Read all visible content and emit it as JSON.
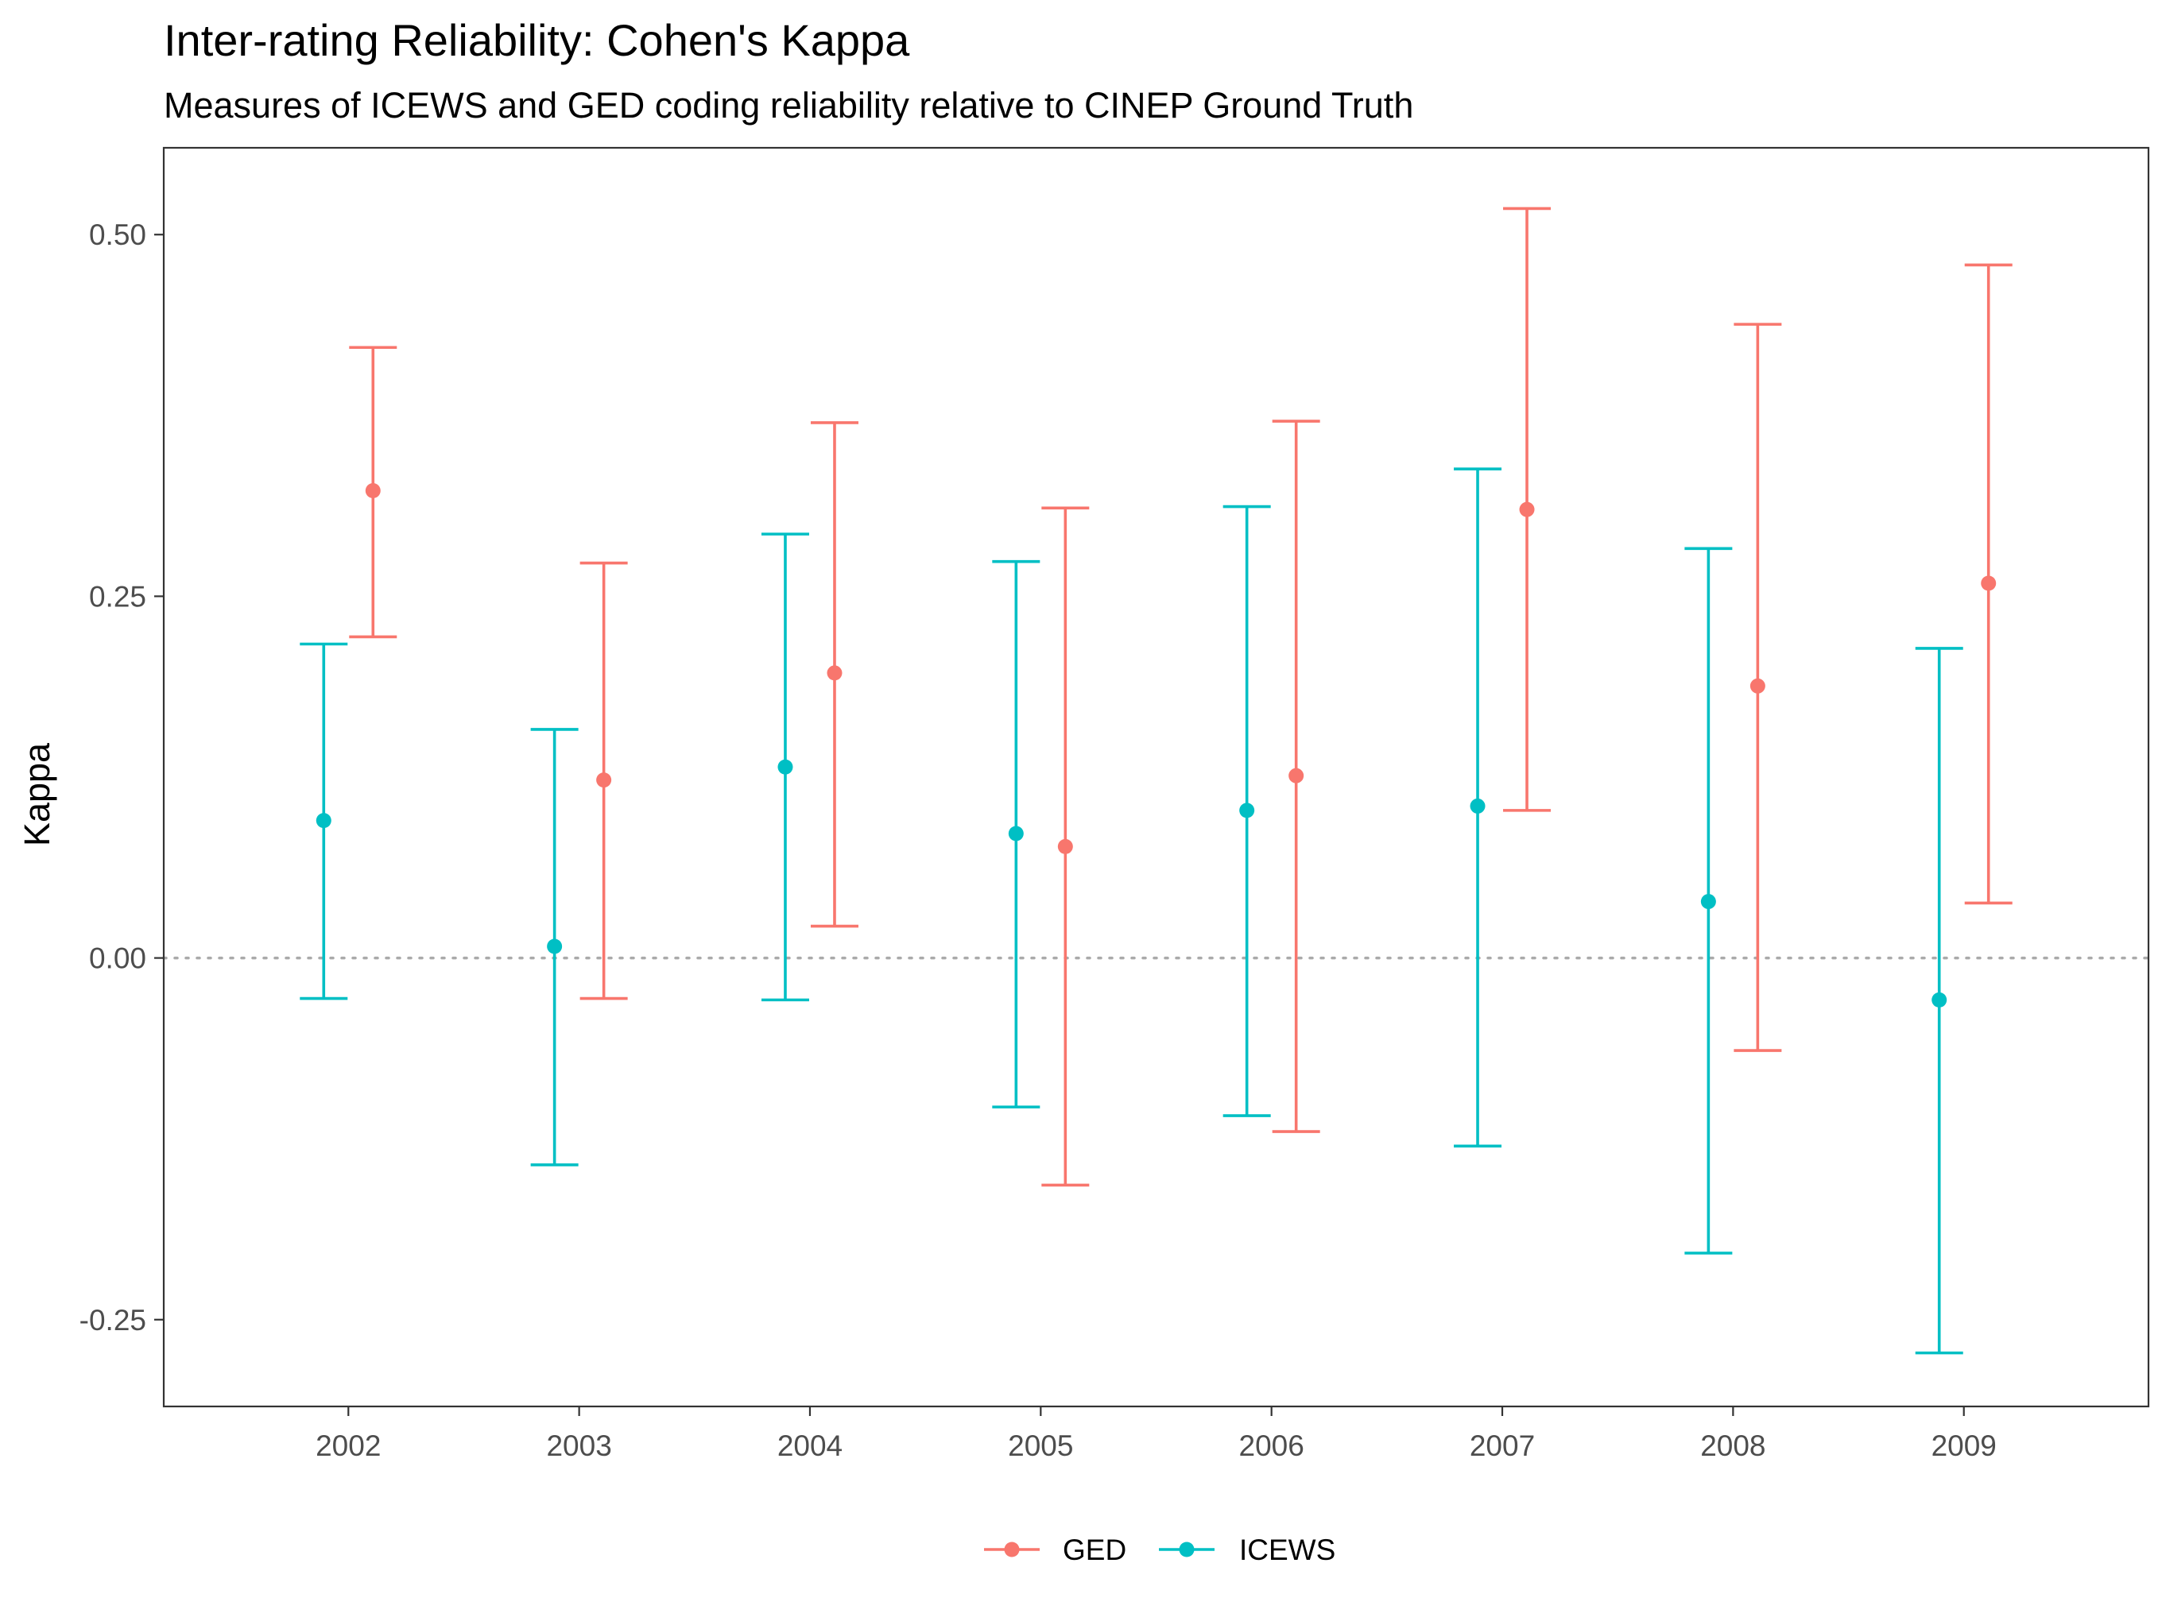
{
  "chart_data": {
    "type": "errorbar",
    "title": "Inter-rating Reliability: Cohen's Kappa",
    "subtitle": "Measures of ICEWS and GED coding reliability relative to CINEP Ground Truth",
    "xlabel": "",
    "ylabel": "Kappa",
    "categories": [
      "2002",
      "2003",
      "2004",
      "2005",
      "2006",
      "2007",
      "2008",
      "2009"
    ],
    "ylim": [
      -0.31,
      0.56
    ],
    "yticks": [
      -0.25,
      0.0,
      0.25,
      0.5
    ],
    "ytick_labels": [
      "-0.25",
      "0.00",
      "0.25",
      "0.50"
    ],
    "reference_line": {
      "y": 0.0,
      "style": "dotted",
      "color": "#aaaaaa"
    },
    "grid": false,
    "legend_position": "bottom",
    "series": [
      {
        "name": "GED",
        "color": "#F8766D",
        "values": [
          0.323,
          0.123,
          0.197,
          0.077,
          0.126,
          0.31,
          0.188,
          0.259
        ],
        "lower": [
          0.222,
          -0.028,
          0.022,
          -0.157,
          -0.12,
          0.102,
          -0.064,
          0.038
        ],
        "upper": [
          0.422,
          0.273,
          0.37,
          0.311,
          0.371,
          0.518,
          0.438,
          0.479
        ]
      },
      {
        "name": "ICEWS",
        "color": "#00BFC4",
        "values": [
          0.095,
          0.008,
          0.132,
          0.086,
          0.102,
          0.105,
          0.039,
          -0.029
        ],
        "lower": [
          -0.028,
          -0.143,
          -0.029,
          -0.103,
          -0.109,
          -0.13,
          -0.204,
          -0.273
        ],
        "upper": [
          0.217,
          0.158,
          0.293,
          0.274,
          0.312,
          0.338,
          0.283,
          0.214
        ]
      }
    ]
  }
}
